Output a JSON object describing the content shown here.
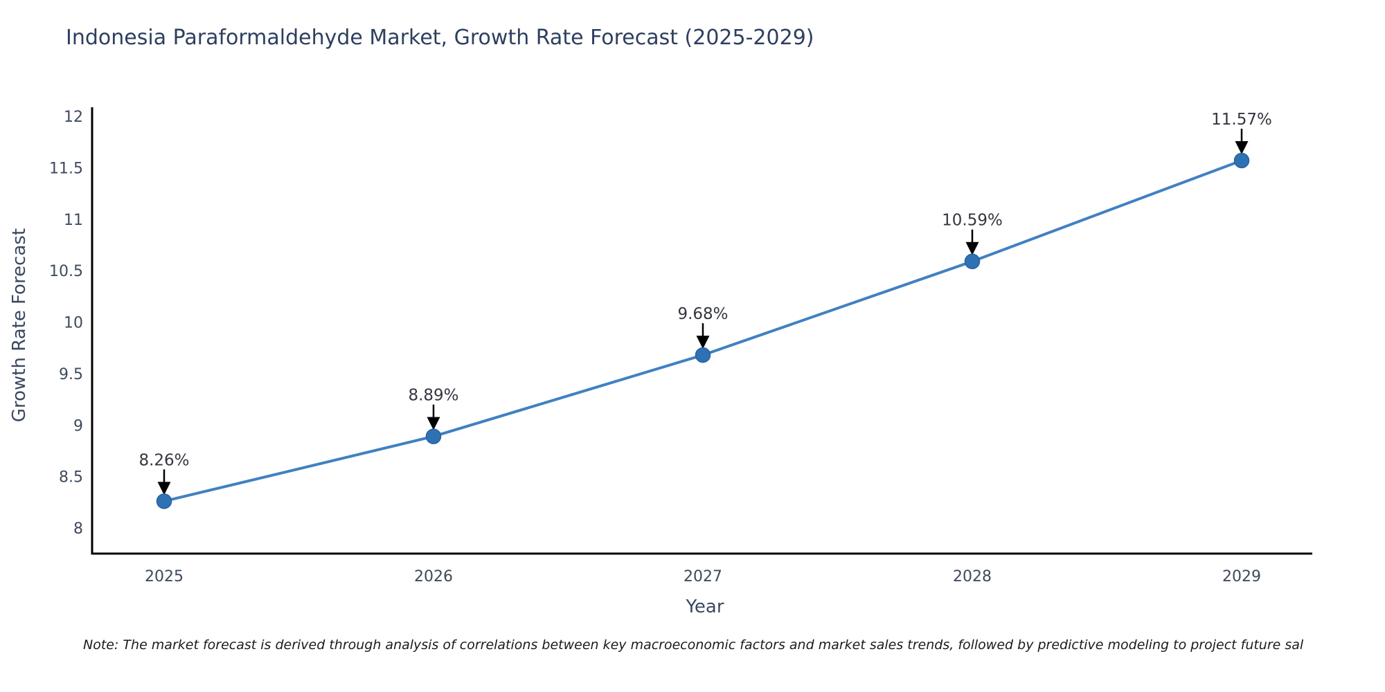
{
  "figure": {
    "note": "Note: The market forecast is derived through analysis of correlations between key macroeconomic factors and market sales trends, followed by predictive modeling to project future sal"
  },
  "chart_data": {
    "type": "line",
    "title": "Indonesia Paraformaldehyde Market, Growth Rate Forecast (2025-2029)",
    "xlabel": "Year",
    "ylabel": "Growth Rate Forecast",
    "x": [
      "2025",
      "2026",
      "2027",
      "2028",
      "2029"
    ],
    "values": [
      8.26,
      8.89,
      9.68,
      10.59,
      11.57
    ],
    "point_labels": [
      "8.26%",
      "8.89%",
      "9.68%",
      "10.59%",
      "11.57%"
    ],
    "yticks": [
      8,
      8.5,
      9,
      9.5,
      10,
      10.5,
      11,
      11.5,
      12
    ],
    "ytick_labels": [
      "8",
      "8.5",
      "9",
      "9.5",
      "10",
      "10.5",
      "11",
      "11.5",
      "12"
    ],
    "ylim": [
      7.78,
      12.34
    ],
    "grid": false,
    "legend": false,
    "annotation_style": "down-arrow-to-point",
    "colors": {
      "line": "#4081c1",
      "marker": "#2f72b4",
      "marker_edge": "#27619e",
      "axis": "#000000",
      "title_text": "#2e3f5f",
      "tick_text": "#3e4a5c",
      "axis_label_text": "#3a4860",
      "annotation_text": "#333640",
      "annotation_arrow": "#000000",
      "note_text": "#1a1a1a",
      "background": "#ffffff"
    }
  }
}
